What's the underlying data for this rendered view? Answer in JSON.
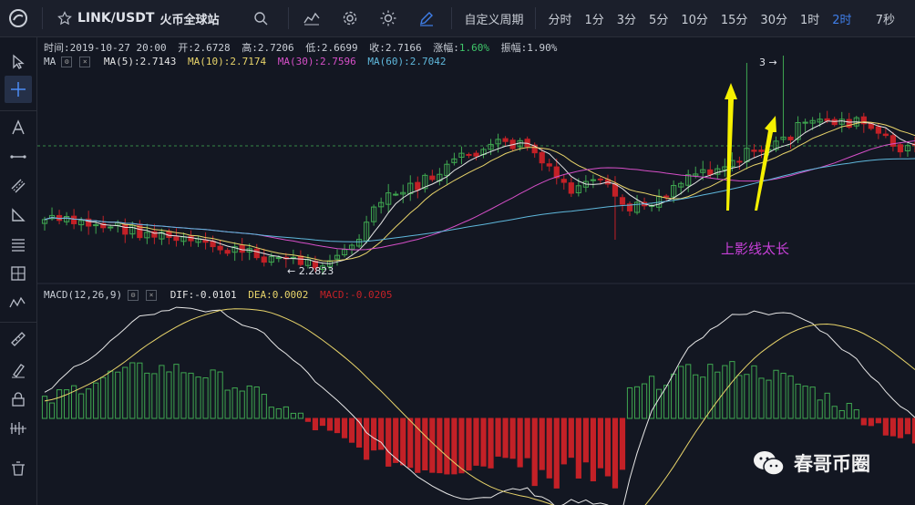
{
  "toolbar": {
    "symbol": "LINK/USDT",
    "exchange": "火币全球站",
    "custom_period": "自定义周期",
    "intervals": [
      "分时",
      "1分",
      "3分",
      "5分",
      "10分",
      "15分",
      "30分",
      "1时",
      "2时"
    ],
    "active_interval": "2时",
    "countdown": "7秒"
  },
  "info": {
    "time_label": "时间:",
    "time": "2019-10-27 20:00",
    "open_label": "开:",
    "open": "2.6728",
    "high_label": "高:",
    "high": "2.7206",
    "low_label": "低:",
    "low": "2.6699",
    "close_label": "收:",
    "close": "2.7166",
    "change_label": "涨幅:",
    "change": "1.60%",
    "amp_label": "振幅:",
    "amp": "1.90%"
  },
  "ma": {
    "label": "MA",
    "ma5": "MA(5):2.7143",
    "ma10": "MA(10):2.7174",
    "ma30": "MA(30):2.7596",
    "ma60": "MA(60):2.7042",
    "colors": {
      "ma5": "#e6e6e6",
      "ma10": "#e8d46a",
      "ma30": "#d64fc8",
      "ma60": "#5fb8dc"
    }
  },
  "macd": {
    "label": "MACD(12,26,9)",
    "dif": "DIF:-0.0101",
    "dea": "DEA:0.0002",
    "macd": "MACD:-0.0205"
  },
  "annotations": {
    "low_marker": "← 2.2823",
    "high_marker": "3 →",
    "note": "上影线太长"
  },
  "watermark": {
    "text": "春哥币圈"
  },
  "colors": {
    "up": "#3fa750",
    "down": "#c32127",
    "background": "#131722",
    "arrow": "#f5f000",
    "note": "#c740d8"
  }
}
